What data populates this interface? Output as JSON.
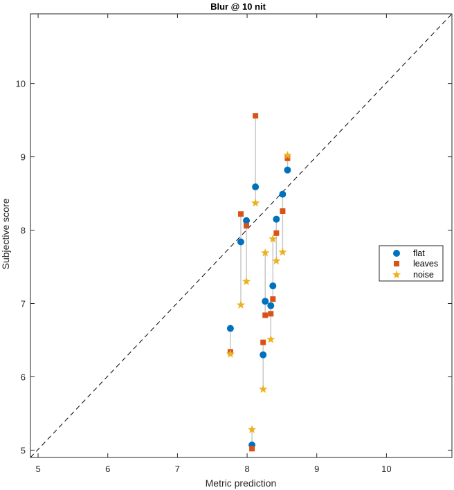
{
  "chart_data": {
    "type": "scatter",
    "title": "Blur @ 10 nit",
    "xlabel": "Metric prediction",
    "ylabel": "Subjective score",
    "xlim": [
      4.89,
      10.94
    ],
    "ylim": [
      4.9,
      10.95
    ],
    "xticks": [
      5,
      6,
      7,
      8,
      9,
      10
    ],
    "yticks": [
      5,
      6,
      7,
      8,
      9,
      10
    ],
    "xtick_labels": [
      "5",
      "6",
      "7",
      "8",
      "9",
      "10"
    ],
    "ytick_labels": [
      "5",
      "6",
      "7",
      "8",
      "9",
      "10"
    ],
    "grid": false,
    "reference_line": {
      "style": "dashed",
      "from": [
        4.89,
        4.9
      ],
      "to": [
        10.94,
        10.95
      ]
    },
    "legend": {
      "placement": "right",
      "entries": [
        "flat",
        "leaves",
        "noise"
      ]
    },
    "x": [
      7.76,
      7.91,
      7.99,
      8.12,
      8.07,
      8.23,
      8.26,
      8.34,
      8.37,
      8.42,
      8.51,
      8.58
    ],
    "series": [
      {
        "name": "flat",
        "marker": "circle",
        "color": "#0072BD",
        "values": [
          6.66,
          7.84,
          8.13,
          8.59,
          5.07,
          6.3,
          7.03,
          6.97,
          7.24,
          8.15,
          8.49,
          8.82
        ]
      },
      {
        "name": "leaves",
        "marker": "square",
        "color": "#D95319",
        "values": [
          6.34,
          8.22,
          8.06,
          9.56,
          5.02,
          6.47,
          6.84,
          6.86,
          7.06,
          7.96,
          8.26,
          8.98
        ]
      },
      {
        "name": "noise",
        "marker": "star",
        "color": "#EDB120",
        "values": [
          6.31,
          6.98,
          7.3,
          8.37,
          5.28,
          5.83,
          7.69,
          6.51,
          7.88,
          7.58,
          7.7,
          9.02
        ]
      }
    ],
    "connector_color": "#C8C8C8"
  }
}
